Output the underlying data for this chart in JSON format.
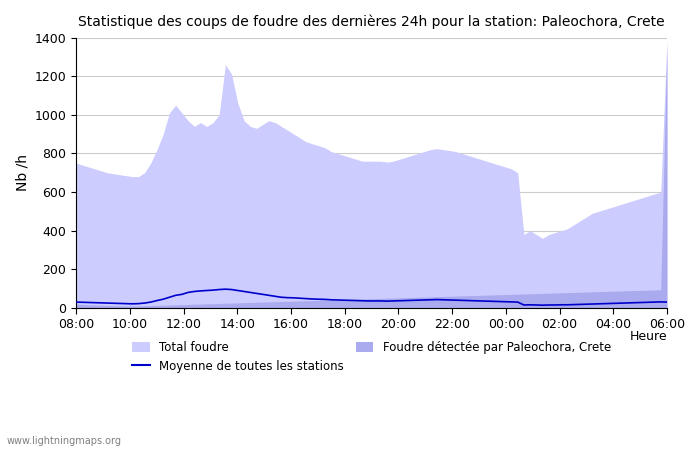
{
  "title": "Statistique des coups de foudre des dernières 24h pour la station: Paleochora, Crete",
  "ylabel": "Nb /h",
  "xlabel_right": "Heure",
  "watermark": "www.lightningmaps.org",
  "ylim": [
    0,
    1400
  ],
  "yticks": [
    0,
    200,
    400,
    600,
    800,
    1000,
    1200,
    1400
  ],
  "xtick_labels": [
    "08:00",
    "10:00",
    "12:00",
    "14:00",
    "16:00",
    "18:00",
    "20:00",
    "22:00",
    "00:00",
    "02:00",
    "04:00",
    "06:00"
  ],
  "legend_total": "Total foudre",
  "legend_moyenne": "Moyenne de toutes les stations",
  "legend_detected": "Foudre détectée par Paleochora, Crete",
  "color_total_fill": "#ccccff",
  "color_detected_fill": "#aaaaee",
  "color_moyenne_line": "#0000cc",
  "color_detected_edge": "#8888cc",
  "background_color": "#ffffff",
  "grid_color": "#cccccc",
  "times": [
    0,
    1,
    2,
    3,
    4,
    5,
    6,
    7,
    8,
    9,
    10,
    11,
    12,
    13,
    14,
    15,
    16,
    17,
    18,
    19,
    20,
    21,
    22,
    23,
    24,
    25,
    26,
    27,
    28,
    29,
    30,
    31,
    32,
    33,
    34,
    35,
    36,
    37,
    38,
    39,
    40,
    41,
    42,
    43,
    44,
    45,
    46,
    47,
    48,
    49,
    50,
    51,
    52,
    53,
    54,
    55,
    56,
    57,
    58,
    59,
    60,
    61,
    62,
    63,
    64,
    65,
    66,
    67,
    68,
    69,
    70,
    71,
    72,
    73,
    74,
    75,
    76,
    77,
    78,
    79,
    80,
    81,
    82,
    83,
    84,
    85,
    86,
    87,
    88,
    89,
    90,
    91,
    92,
    93,
    94,
    95
  ],
  "total_foudre": [
    750,
    740,
    730,
    720,
    710,
    700,
    695,
    690,
    685,
    680,
    680,
    700,
    750,
    820,
    900,
    1010,
    1050,
    1010,
    970,
    940,
    960,
    940,
    960,
    1000,
    1260,
    1210,
    1060,
    970,
    940,
    930,
    950,
    970,
    960,
    940,
    920,
    900,
    880,
    860,
    850,
    840,
    830,
    810,
    800,
    790,
    780,
    770,
    760,
    760,
    760,
    760,
    755,
    760,
    770,
    780,
    790,
    800,
    810,
    820,
    825,
    820,
    815,
    810,
    800,
    790,
    780,
    770,
    760,
    750,
    740,
    730,
    720,
    700,
    380,
    400,
    380,
    360,
    380,
    390,
    400,
    410,
    430,
    450,
    470,
    490,
    500,
    510,
    520,
    530,
    540,
    550,
    560,
    570,
    580,
    590,
    600,
    1380
  ],
  "detected_foudre": [
    20,
    18,
    16,
    15,
    14,
    13,
    12,
    11,
    10,
    10,
    10,
    11,
    12,
    13,
    14,
    15,
    16,
    17,
    18,
    19,
    20,
    21,
    22,
    23,
    24,
    25,
    26,
    27,
    28,
    29,
    30,
    31,
    32,
    33,
    34,
    35,
    36,
    37,
    38,
    39,
    40,
    41,
    42,
    43,
    44,
    45,
    46,
    47,
    48,
    49,
    50,
    51,
    52,
    53,
    54,
    55,
    56,
    57,
    58,
    59,
    60,
    61,
    62,
    63,
    64,
    65,
    66,
    67,
    68,
    69,
    70,
    71,
    72,
    73,
    74,
    75,
    76,
    77,
    78,
    79,
    80,
    81,
    82,
    83,
    84,
    85,
    86,
    87,
    88,
    89,
    90,
    91,
    92,
    93,
    94,
    1370
  ],
  "moyenne_line": [
    30,
    29,
    28,
    27,
    26,
    25,
    24,
    23,
    22,
    21,
    22,
    25,
    30,
    38,
    45,
    55,
    65,
    70,
    80,
    85,
    88,
    90,
    92,
    95,
    97,
    95,
    90,
    85,
    80,
    75,
    70,
    65,
    60,
    55,
    53,
    52,
    50,
    48,
    46,
    45,
    44,
    42,
    41,
    40,
    39,
    38,
    37,
    36,
    36,
    36,
    35,
    36,
    37,
    38,
    39,
    40,
    41,
    42,
    43,
    42,
    41,
    40,
    39,
    38,
    37,
    36,
    35,
    34,
    33,
    32,
    31,
    30,
    15,
    16,
    15,
    14,
    15,
    15,
    16,
    16,
    17,
    18,
    19,
    20,
    21,
    22,
    23,
    24,
    25,
    26,
    27,
    28,
    29,
    30,
    31,
    30
  ]
}
